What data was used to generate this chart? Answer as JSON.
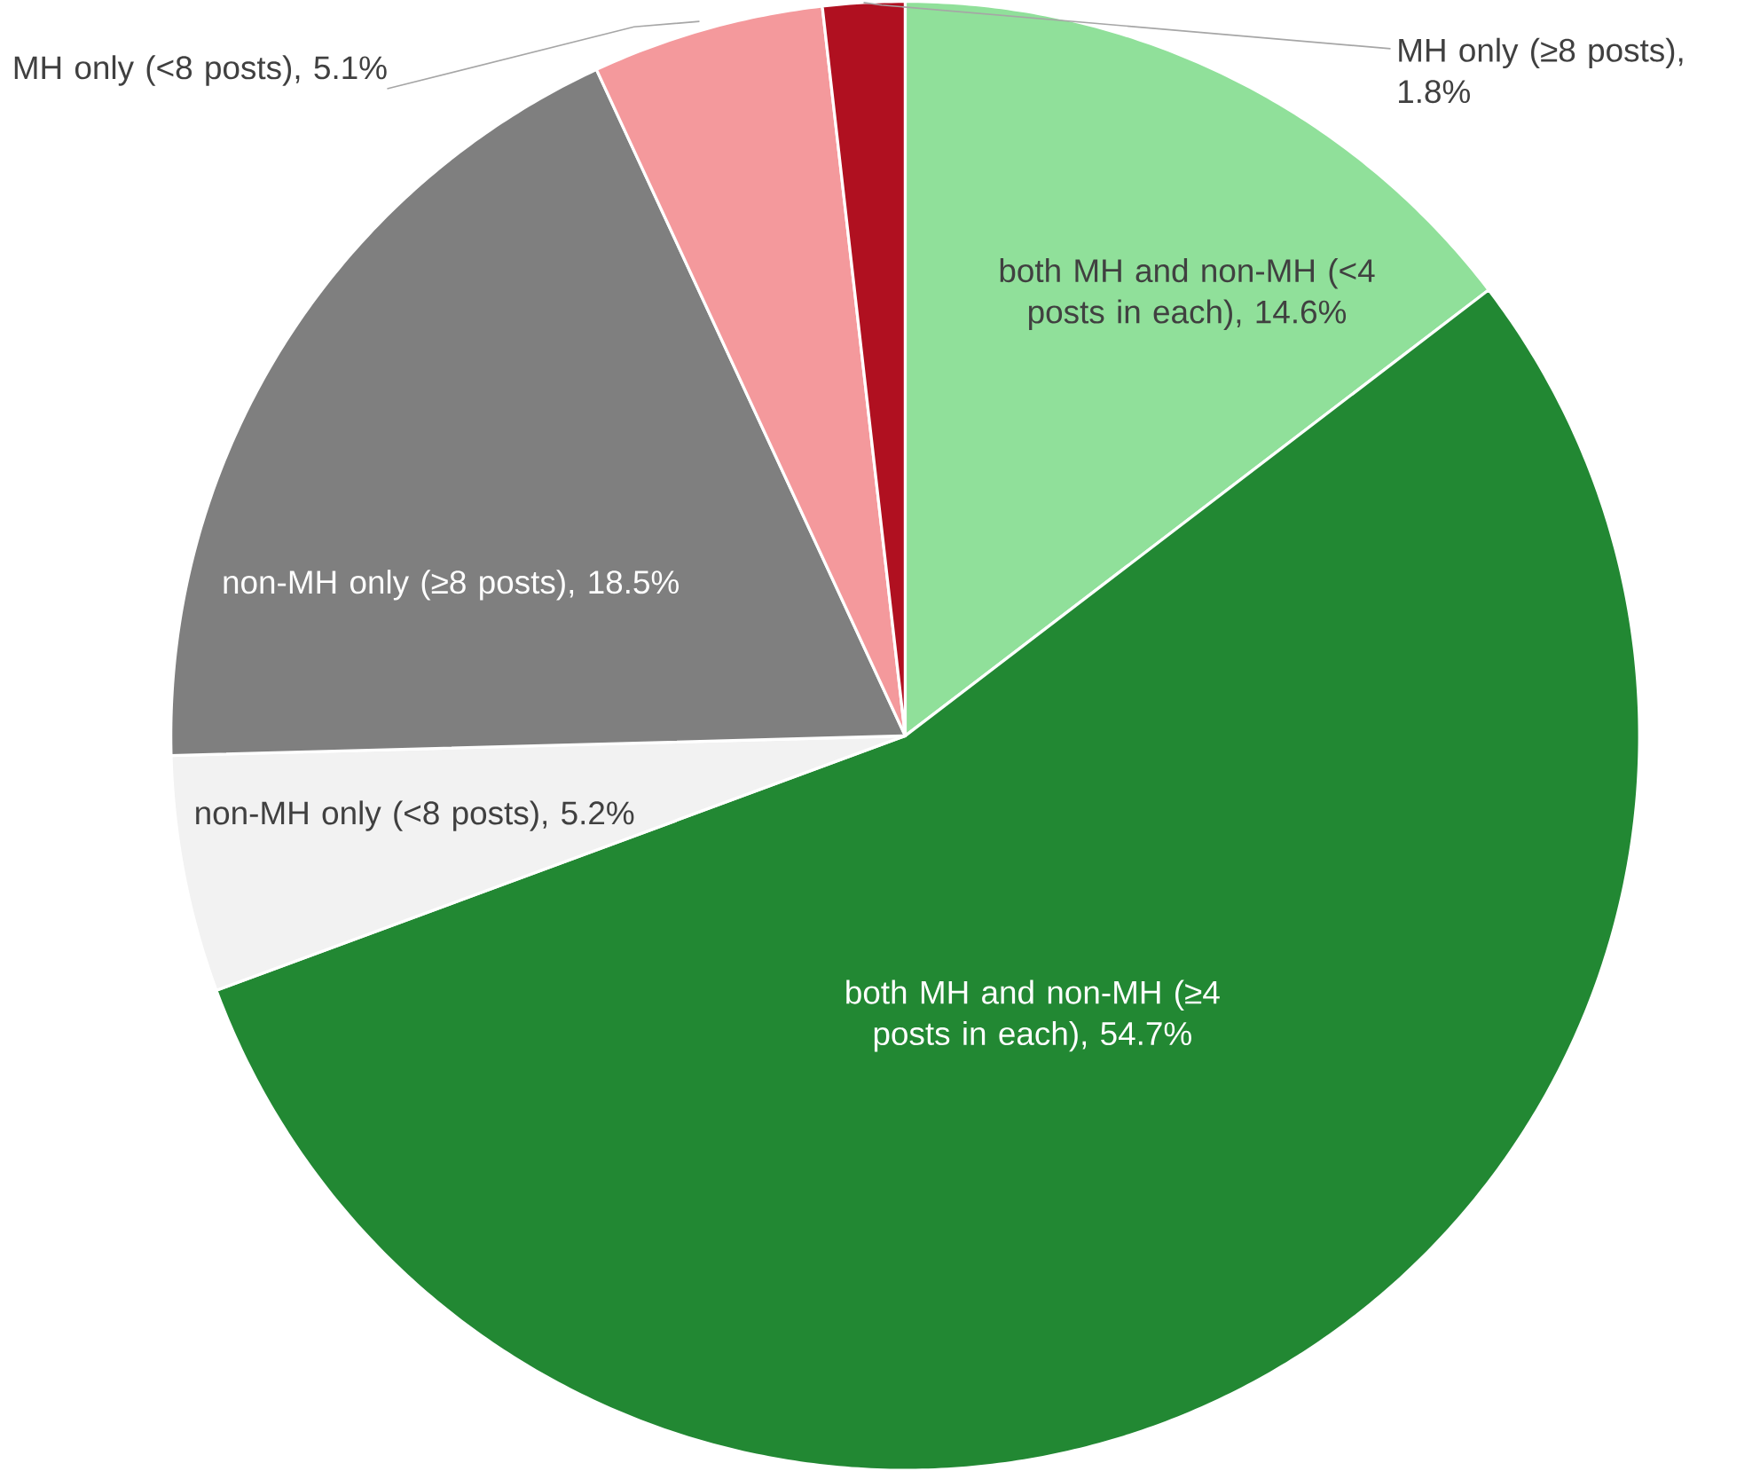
{
  "chart_data": {
    "type": "pie",
    "categories": [
      "both MH and non-MH (<4 posts in each), 14.6%",
      "both MH and non-MH (≥4 posts in each), 54.7%",
      "non-MH only (<8 posts), 5.2%",
      "non-MH only (≥8 posts), 18.5%",
      "MH only (<8 posts), 5.1%",
      "MH only (≥8 posts), 1.8%"
    ],
    "values": [
      14.6,
      54.7,
      5.2,
      18.5,
      5.1,
      1.8
    ],
    "colors": [
      "#90e09a",
      "#228833",
      "#f2f2f2",
      "#7f7f7f",
      "#f4999c",
      "#b01020"
    ]
  }
}
